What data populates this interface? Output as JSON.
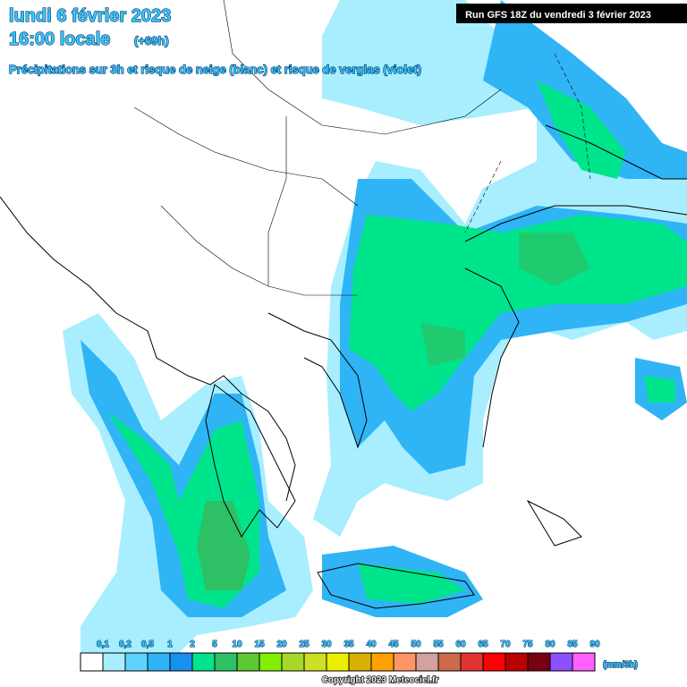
{
  "header": {
    "date": "lundi 6 février 2023",
    "time": "16:00 locale",
    "lead": "(+69h)",
    "subtitle": "Précipitations sur 3h et risque de neige (blanc) et risque de verglas (violet)",
    "run": "Run GFS 18Z du vendredi 3 février 2023"
  },
  "legend": {
    "items": [
      {
        "label": "0,1",
        "color": "#ffffff"
      },
      {
        "label": "0,2",
        "color": "#a8eeff"
      },
      {
        "label": "0,5",
        "color": "#5cd4ff"
      },
      {
        "label": "1",
        "color": "#2fb4f6"
      },
      {
        "label": "2",
        "color": "#1890f0"
      },
      {
        "label": "5",
        "color": "#00e48c"
      },
      {
        "label": "10",
        "color": "#2ec064"
      },
      {
        "label": "15",
        "color": "#5cc832"
      },
      {
        "label": "20",
        "color": "#7ef000"
      },
      {
        "label": "25",
        "color": "#a6d828"
      },
      {
        "label": "30",
        "color": "#cce028"
      },
      {
        "label": "35",
        "color": "#eaf000"
      },
      {
        "label": "40",
        "color": "#d8b000"
      },
      {
        "label": "45",
        "color": "#ffa000"
      },
      {
        "label": "50",
        "color": "#ff9464"
      },
      {
        "label": "55",
        "color": "#d4a0a0"
      },
      {
        "label": "60",
        "color": "#cc6a4a"
      },
      {
        "label": "65",
        "color": "#e03434"
      },
      {
        "label": "70",
        "color": "#ff0000"
      },
      {
        "label": "75",
        "color": "#b80000"
      },
      {
        "label": "80",
        "color": "#780010"
      },
      {
        "label": "85",
        "color": "#8c50ff"
      },
      {
        "label": "90",
        "color": "#ff60ff"
      }
    ],
    "unit": "(mm/3h)"
  },
  "footer": {
    "copyright": "Copyright 2023 Meteociel.fr"
  }
}
